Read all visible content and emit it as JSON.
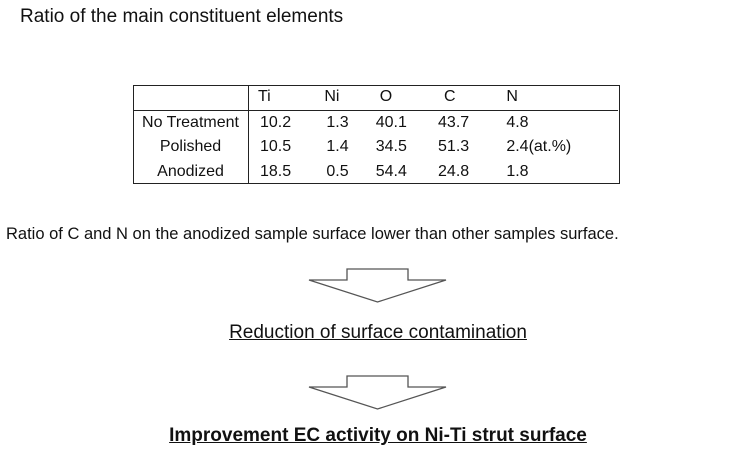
{
  "title": "Ratio of the main constituent elements",
  "table": {
    "headers": [
      "Ti",
      "Ni",
      "O",
      "C",
      "N"
    ],
    "rows": [
      {
        "label": "No Treatment",
        "values": [
          "10.2",
          "1.3",
          "40.1",
          "43.7",
          "4.8"
        ],
        "note": ""
      },
      {
        "label": "Polished",
        "values": [
          "10.5",
          "1.4",
          "34.5",
          "51.3",
          "2.4"
        ],
        "note": "(at.%)"
      },
      {
        "label": "Anodized",
        "values": [
          "18.5",
          "0.5",
          "54.4",
          "24.8",
          "1.8"
        ],
        "note": ""
      }
    ]
  },
  "statement": "Ratio of C and N on the anodized sample surface lower than other samples surface.",
  "reduction": "Reduction of surface contamination",
  "improvement": "Improvement EC activity on Ni-Ti strut surface",
  "colors": {
    "text": "#111111",
    "arrow_stroke": "#555555"
  }
}
